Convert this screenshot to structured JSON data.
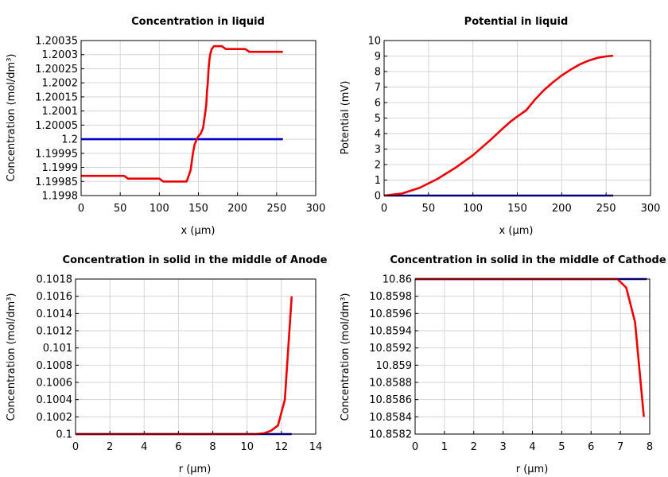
{
  "chart_data": [
    {
      "type": "line",
      "title": "Concentration in liquid",
      "xlabel": "x (µm)",
      "ylabel": "Concentration (mol/dm³)",
      "xlim": [
        0,
        300
      ],
      "ylim": [
        1.1998,
        1.20035
      ],
      "xticks": [
        "0",
        "50",
        "100",
        "150",
        "200",
        "250",
        "300"
      ],
      "yticks": [
        "1.1998",
        "1.19985",
        "1.1999",
        "1.19995",
        "1.2",
        "1.20005",
        "1.2001",
        "1.20015",
        "1.2002",
        "1.20025",
        "1.2003",
        "1.20035"
      ],
      "grid": true,
      "series": [
        {
          "color": "#0000cc",
          "x": [
            0,
            258
          ],
          "y": [
            1.2,
            1.2
          ]
        },
        {
          "color": "#ee0000",
          "x": [
            0,
            25,
            50,
            55,
            60,
            80,
            100,
            105,
            120,
            135,
            140,
            143,
            145,
            148,
            150,
            153,
            156,
            158,
            160,
            161,
            162,
            163,
            164,
            165,
            167,
            170,
            175,
            180,
            185,
            190,
            200,
            210,
            215,
            220,
            240,
            258
          ],
          "y": [
            1.19987,
            1.19987,
            1.19987,
            1.19987,
            1.19986,
            1.19986,
            1.19986,
            1.19985,
            1.19985,
            1.19985,
            1.19989,
            1.19995,
            1.19998,
            1.2,
            1.20001,
            1.20002,
            1.20004,
            1.20008,
            1.20012,
            1.20017,
            1.2002,
            1.20025,
            1.20028,
            1.2003,
            1.20032,
            1.20033,
            1.20033,
            1.20033,
            1.20032,
            1.20032,
            1.20032,
            1.20032,
            1.20031,
            1.20031,
            1.20031,
            1.20031
          ]
        }
      ]
    },
    {
      "type": "line",
      "title": "Potential in liquid",
      "xlabel": "x (µm)",
      "ylabel": "Potential (mV)",
      "xlim": [
        0,
        300
      ],
      "ylim": [
        0,
        10
      ],
      "xticks": [
        "0",
        "50",
        "100",
        "150",
        "200",
        "250",
        "300"
      ],
      "yticks": [
        "0",
        "1",
        "2",
        "3",
        "4",
        "5",
        "6",
        "7",
        "8",
        "9",
        "10"
      ],
      "grid": true,
      "series": [
        {
          "color": "#0000cc",
          "x": [
            0,
            258
          ],
          "y": [
            0,
            0
          ]
        },
        {
          "color": "#ee0000",
          "x": [
            0,
            20,
            40,
            60,
            80,
            100,
            120,
            135,
            143,
            150,
            160,
            170,
            180,
            190,
            200,
            210,
            220,
            230,
            240,
            250,
            258
          ],
          "y": [
            0,
            0.13,
            0.5,
            1.07,
            1.78,
            2.6,
            3.6,
            4.4,
            4.8,
            5.1,
            5.5,
            6.2,
            6.8,
            7.3,
            7.75,
            8.12,
            8.45,
            8.7,
            8.88,
            8.98,
            9.02
          ]
        }
      ]
    },
    {
      "type": "line",
      "title": "Concentration in solid in the middle of Anode",
      "xlabel": "r (µm)",
      "ylabel": "Concentration (mol/dm³)",
      "xlim": [
        0,
        14
      ],
      "ylim": [
        0.1,
        0.1018
      ],
      "xticks": [
        "0",
        "2",
        "4",
        "6",
        "8",
        "10",
        "12",
        "14"
      ],
      "yticks": [
        "0.1",
        "0.1002",
        "0.1004",
        "0.1006",
        "0.1008",
        "0.101",
        "0.1012",
        "0.1014",
        "0.1016",
        "0.1018"
      ],
      "grid": true,
      "series": [
        {
          "color": "#0000cc",
          "x": [
            0,
            12.6
          ],
          "y": [
            0.1,
            0.1
          ]
        },
        {
          "color": "#ee0000",
          "x": [
            0,
            8,
            10,
            10.5,
            11,
            11.4,
            11.8,
            12.2,
            12.6
          ],
          "y": [
            0.1,
            0.1,
            0.1,
            0.1,
            0.10001,
            0.10004,
            0.1001,
            0.1004,
            0.1016
          ]
        }
      ]
    },
    {
      "type": "line",
      "title": "Concentration in solid in the middle of Cathode",
      "xlabel": "r (µm)",
      "ylabel": "Concentration (mol/dm³)",
      "xlim": [
        0,
        8
      ],
      "ylim": [
        10.8582,
        10.86
      ],
      "xticks": [
        "0",
        "1",
        "2",
        "3",
        "4",
        "5",
        "6",
        "7",
        "8"
      ],
      "yticks": [
        "10.8582",
        "10.8584",
        "10.8586",
        "10.8588",
        "10.859",
        "10.8592",
        "10.8594",
        "10.8596",
        "10.8598",
        "10.86"
      ],
      "grid": true,
      "series": [
        {
          "color": "#0000cc",
          "x": [
            0,
            7.9
          ],
          "y": [
            10.86,
            10.86
          ]
        },
        {
          "color": "#ee0000",
          "x": [
            0,
            6.5,
            6.9,
            7.2,
            7.5,
            7.8
          ],
          "y": [
            10.86,
            10.86,
            10.86,
            10.8599,
            10.8595,
            10.8584
          ]
        }
      ]
    }
  ]
}
